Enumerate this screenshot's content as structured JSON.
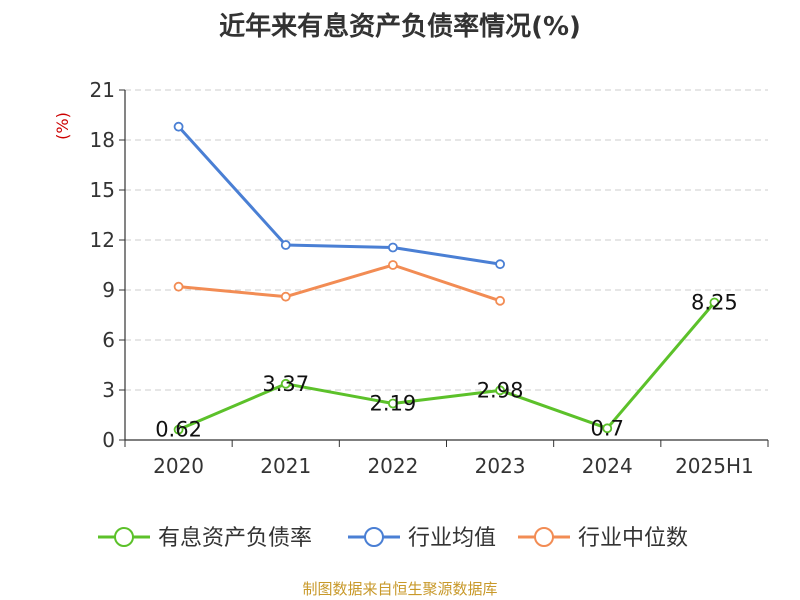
{
  "chart_data": {
    "type": "line",
    "title": "近年来有息资产负债率情况(%)",
    "ylabel": "(%)",
    "categories": [
      "2020",
      "2021",
      "2022",
      "2023",
      "2024",
      "2025H1"
    ],
    "ylim": [
      0,
      21
    ],
    "yticks": [
      0,
      3,
      6,
      9,
      12,
      15,
      18,
      21
    ],
    "grid": true,
    "legend_position": "bottom",
    "series": [
      {
        "name": "有息资产负债率",
        "color": "#5cc12a",
        "values": [
          0.62,
          3.37,
          2.19,
          2.98,
          0.7,
          8.25
        ],
        "labels": [
          "0.62",
          "3.37",
          "2.19",
          "2.98",
          "0.7",
          "8.25"
        ]
      },
      {
        "name": "行业均值",
        "color": "#4a7fd4",
        "values": [
          18.8,
          11.7,
          11.55,
          10.55,
          null,
          null
        ]
      },
      {
        "name": "行业中位数",
        "color": "#f28c54",
        "values": [
          9.2,
          8.6,
          10.5,
          8.35,
          null,
          null
        ]
      }
    ]
  },
  "source": "制图数据来自恒生聚源数据库"
}
